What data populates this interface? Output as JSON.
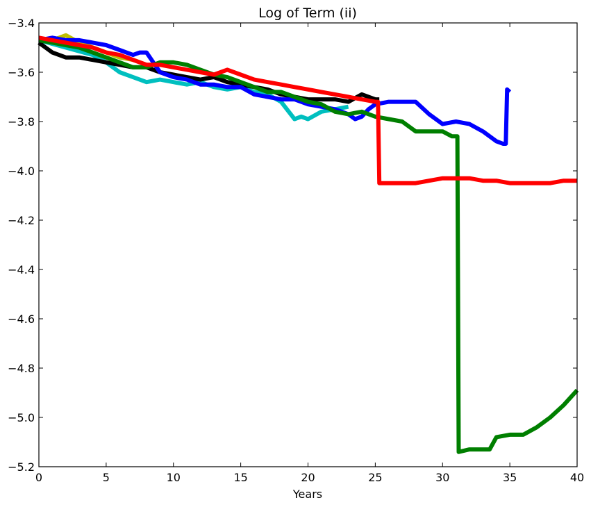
{
  "chart_data": {
    "type": "line",
    "title": "Log of Term (ii)",
    "xlabel": "Years",
    "ylabel": "",
    "xlim": [
      0,
      40
    ],
    "ylim": [
      -5.2,
      -3.4
    ],
    "xticks": [
      0,
      5,
      10,
      15,
      20,
      25,
      30,
      35,
      40
    ],
    "yticks": [
      -5.2,
      -5.0,
      -4.8,
      -4.6,
      -4.4,
      -4.2,
      -4.0,
      -3.8,
      -3.6,
      -3.4
    ],
    "grid": false,
    "legend": "none",
    "series": [
      {
        "color": "#bfbf00",
        "x": [
          0,
          1,
          2,
          3,
          4,
          5,
          6,
          7,
          8
        ],
        "y": [
          -3.47,
          -3.47,
          -3.45,
          -3.48,
          -3.5,
          -3.52,
          -3.54,
          -3.55,
          -3.57
        ]
      },
      {
        "color": "#00bfbf",
        "x": [
          0,
          2,
          4,
          5,
          6,
          7,
          8,
          9,
          10,
          11,
          12,
          13,
          14,
          15,
          16,
          17,
          18,
          19,
          19.5,
          20,
          21,
          22,
          23
        ],
        "y": [
          -3.47,
          -3.5,
          -3.53,
          -3.56,
          -3.6,
          -3.62,
          -3.64,
          -3.63,
          -3.64,
          -3.65,
          -3.64,
          -3.66,
          -3.67,
          -3.66,
          -3.68,
          -3.69,
          -3.72,
          -3.79,
          -3.78,
          -3.79,
          -3.76,
          -3.75,
          -3.74
        ]
      },
      {
        "color": "#000000",
        "x": [
          0,
          0.5,
          1,
          2,
          3,
          4,
          5,
          6,
          7,
          8,
          9,
          10,
          11,
          12,
          13,
          14,
          15,
          16,
          17,
          18,
          19,
          20,
          21,
          22,
          23,
          24,
          25,
          25.3
        ],
        "y": [
          -3.48,
          -3.5,
          -3.52,
          -3.54,
          -3.54,
          -3.55,
          -3.56,
          -3.57,
          -3.58,
          -3.58,
          -3.6,
          -3.61,
          -3.62,
          -3.63,
          -3.62,
          -3.64,
          -3.65,
          -3.66,
          -3.67,
          -3.69,
          -3.7,
          -3.71,
          -3.71,
          -3.71,
          -3.72,
          -3.69,
          -3.71,
          -3.71
        ]
      },
      {
        "color": "#0000ff",
        "x": [
          0,
          1,
          2,
          3,
          4,
          5,
          6,
          7,
          7.5,
          8,
          8.5,
          9,
          10,
          11,
          12,
          13,
          14,
          15,
          16,
          17,
          18,
          19,
          20,
          21,
          22,
          23,
          23.5,
          24,
          24.5,
          25,
          26,
          27,
          28,
          29,
          30,
          31,
          32,
          33,
          34,
          34.5,
          34.7,
          34.8,
          35
        ],
        "y": [
          -3.47,
          -3.46,
          -3.47,
          -3.47,
          -3.48,
          -3.49,
          -3.51,
          -3.53,
          -3.52,
          -3.52,
          -3.56,
          -3.6,
          -3.62,
          -3.63,
          -3.65,
          -3.65,
          -3.66,
          -3.66,
          -3.69,
          -3.7,
          -3.71,
          -3.71,
          -3.73,
          -3.74,
          -3.75,
          -3.77,
          -3.79,
          -3.78,
          -3.75,
          -3.73,
          -3.72,
          -3.72,
          -3.72,
          -3.77,
          -3.81,
          -3.8,
          -3.81,
          -3.84,
          -3.88,
          -3.89,
          -3.89,
          -3.67,
          -3.68
        ]
      },
      {
        "color": "#007f00",
        "x": [
          0,
          1,
          2,
          3,
          4,
          5,
          6,
          7,
          8,
          9,
          10,
          11,
          12,
          13,
          14,
          15,
          16,
          17,
          18,
          19,
          20,
          21,
          22,
          23,
          24,
          25,
          26,
          27,
          28,
          29,
          30,
          30.7,
          31.1,
          31.2,
          32,
          33,
          33.5,
          34,
          35,
          36,
          37,
          38,
          39,
          40
        ],
        "y": [
          -3.47,
          -3.48,
          -3.49,
          -3.5,
          -3.52,
          -3.54,
          -3.56,
          -3.58,
          -3.58,
          -3.56,
          -3.56,
          -3.57,
          -3.59,
          -3.61,
          -3.62,
          -3.64,
          -3.66,
          -3.68,
          -3.68,
          -3.7,
          -3.72,
          -3.73,
          -3.76,
          -3.77,
          -3.76,
          -3.78,
          -3.79,
          -3.8,
          -3.84,
          -3.84,
          -3.84,
          -3.86,
          -3.86,
          -5.14,
          -5.13,
          -5.13,
          -5.13,
          -5.08,
          -5.07,
          -5.07,
          -5.04,
          -5.0,
          -4.95,
          -4.89
        ]
      },
      {
        "color": "#ff0000",
        "x": [
          0,
          1,
          2,
          3,
          4,
          5,
          6,
          7,
          8,
          9,
          10,
          11,
          12,
          13,
          13.5,
          14,
          15,
          16,
          17,
          18,
          19,
          20,
          21,
          22,
          23,
          24,
          25,
          25.2,
          25.3,
          26,
          27,
          28,
          29,
          30,
          31,
          32,
          33,
          34,
          35,
          36,
          37,
          38,
          39,
          40
        ],
        "y": [
          -3.46,
          -3.47,
          -3.48,
          -3.49,
          -3.5,
          -3.52,
          -3.53,
          -3.55,
          -3.57,
          -3.57,
          -3.58,
          -3.59,
          -3.6,
          -3.61,
          -3.6,
          -3.59,
          -3.61,
          -3.63,
          -3.64,
          -3.65,
          -3.66,
          -3.67,
          -3.68,
          -3.69,
          -3.7,
          -3.71,
          -3.72,
          -3.72,
          -4.05,
          -4.05,
          -4.05,
          -4.05,
          -4.04,
          -4.03,
          -4.03,
          -4.03,
          -4.04,
          -4.04,
          -4.05,
          -4.05,
          -4.05,
          -4.05,
          -4.04,
          -4.04
        ]
      }
    ]
  }
}
